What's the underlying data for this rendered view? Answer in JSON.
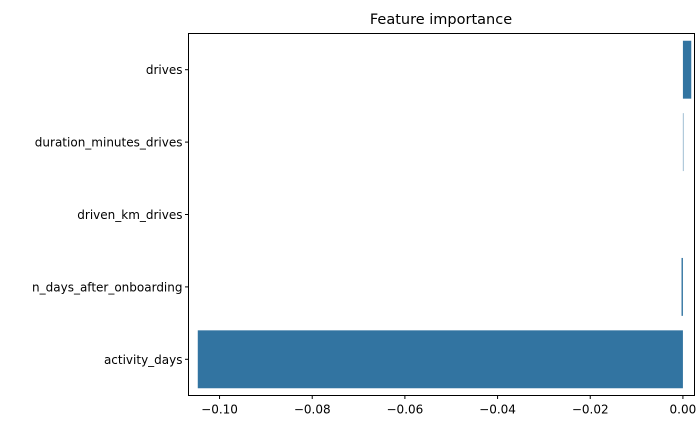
{
  "chart_data": {
    "type": "bar",
    "orientation": "horizontal",
    "title": "Feature importance",
    "xlabel": "",
    "ylabel": "",
    "categories": [
      "drives",
      "duration_minutes_drives",
      "driven_km_drives",
      "n_days_after_onboarding",
      "activity_days"
    ],
    "values": [
      0.0018,
      0.0001,
      0.0,
      -0.0003,
      -0.1047
    ],
    "xlim": [
      -0.1067,
      0.0025
    ],
    "xticks": [
      -0.1,
      -0.08,
      -0.06,
      -0.04,
      -0.02,
      0.0
    ],
    "xtick_labels": [
      "−0.10",
      "−0.08",
      "−0.06",
      "−0.04",
      "−0.02",
      "0.00"
    ],
    "bar_color": "#3274a1",
    "grid": false,
    "legend": "none"
  }
}
